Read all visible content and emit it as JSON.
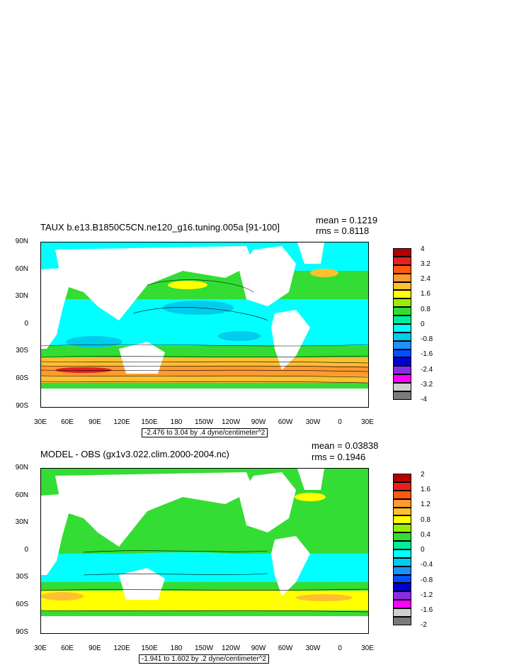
{
  "panels": [
    {
      "id": "top",
      "title": "TAUX b.e13.B1850C5CN.ne120_g16.tuning.005a [91-100]",
      "mean": "mean = 0.1219",
      "rms": "rms = 0.8118",
      "range": "-2.476 to 3.04 by .4 dyne/centimeter^2",
      "lat_labels": [
        "90N",
        "60N",
        "30N",
        "0",
        "30S",
        "60S",
        "90S"
      ],
      "lon_labels": [
        "30E",
        "60E",
        "90E",
        "120E",
        "150E",
        "180",
        "150W",
        "120W",
        "90W",
        "60W",
        "30W",
        "0",
        "30E"
      ],
      "colorbar_labels": [
        "4",
        "3.2",
        "2.4",
        "1.6",
        "0.8",
        "0",
        "-0.8",
        "-1.6",
        "-2.4",
        "-3.2",
        "-4"
      ],
      "colorbar_colors": [
        "#b40000",
        "#e82020",
        "#ff5a10",
        "#ff9a30",
        "#ffc030",
        "#ffff00",
        "#99ee00",
        "#33dd33",
        "#00ee99",
        "#00ffff",
        "#00ccee",
        "#1e90ff",
        "#0050ff",
        "#0000cc",
        "#8a2be2",
        "#ff00ff",
        "#cfcfcf",
        "#7a7a7a"
      ]
    },
    {
      "id": "bottom",
      "title": "MODEL - OBS (gx1v3.022.clim.2000-2004.nc)",
      "mean": "mean = 0.03838",
      "rms": "rms = 0.1946",
      "range": "-1.941 to 1.602 by .2 dyne/centimeter^2",
      "lat_labels": [
        "90N",
        "60N",
        "30N",
        "0",
        "30S",
        "60S",
        "90S"
      ],
      "lon_labels": [
        "30E",
        "60E",
        "90E",
        "120E",
        "150E",
        "180",
        "150W",
        "120W",
        "90W",
        "60W",
        "30W",
        "0",
        "30E"
      ],
      "colorbar_labels": [
        "2",
        "1.6",
        "1.2",
        "0.8",
        "0.4",
        "0",
        "-0.4",
        "-0.8",
        "-1.2",
        "-1.6",
        "-2"
      ],
      "colorbar_colors": [
        "#b40000",
        "#e82020",
        "#ff5a10",
        "#ff9a30",
        "#ffc030",
        "#ffff00",
        "#99ee00",
        "#33dd33",
        "#00ee99",
        "#00ffff",
        "#00ccee",
        "#1e90ff",
        "#0050ff",
        "#0000cc",
        "#8a2be2",
        "#ff00ff",
        "#cfcfcf",
        "#7a7a7a"
      ]
    }
  ]
}
